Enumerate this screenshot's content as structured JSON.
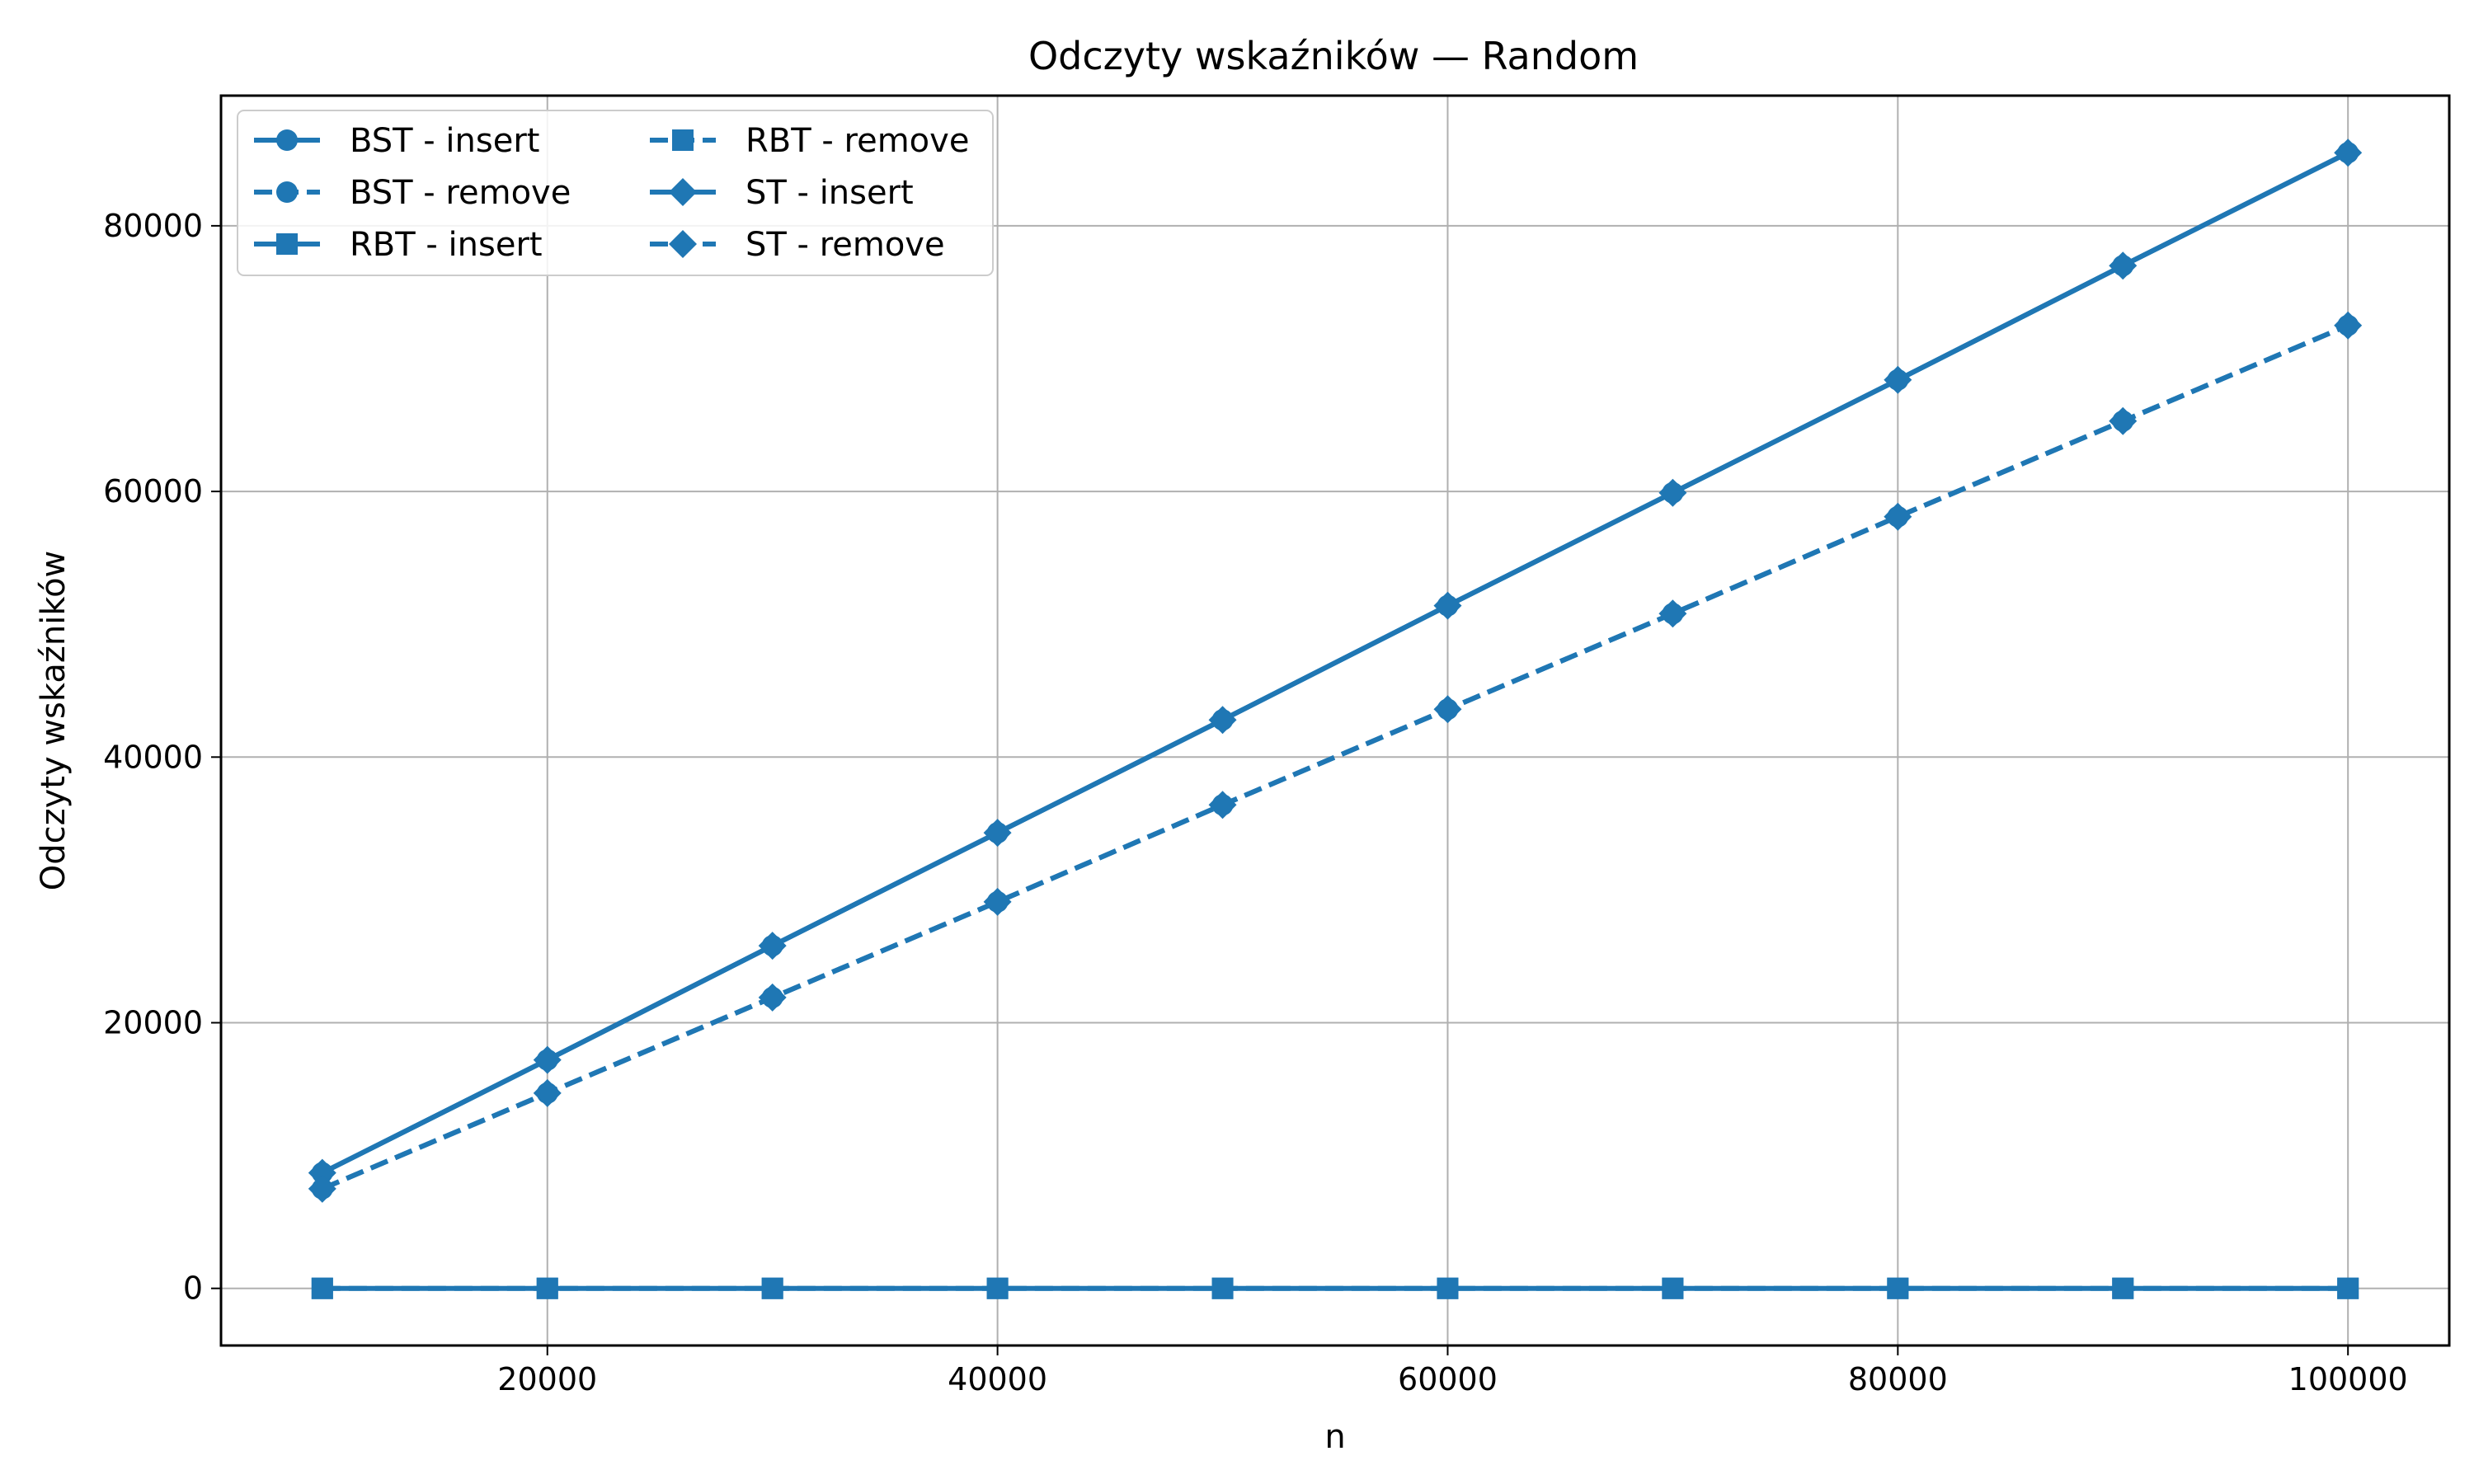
{
  "chart_data": {
    "type": "line",
    "title": "Odczyty wskaźników — Random",
    "xlabel": "n",
    "ylabel": "Odczyty wskaźników",
    "x": [
      10000,
      20000,
      30000,
      40000,
      50000,
      60000,
      70000,
      80000,
      90000,
      100000
    ],
    "xlim": [
      5500,
      104500
    ],
    "ylim": [
      -4300,
      89800
    ],
    "xticks": [
      20000,
      40000,
      60000,
      80000,
      100000
    ],
    "yticks": [
      0,
      20000,
      40000,
      60000,
      80000
    ],
    "xtick_labels": [
      "20000",
      "40000",
      "60000",
      "80000",
      "100000"
    ],
    "ytick_labels": [
      "0",
      "20000",
      "40000",
      "60000",
      "80000"
    ],
    "grid": true,
    "legend_position": "top-left",
    "color": "#1f77b4",
    "series": [
      {
        "name": "BST - insert",
        "marker": "circle",
        "linestyle": "solid",
        "values": [
          8700,
          17200,
          25800,
          34300,
          42800,
          51400,
          59900,
          68400,
          77000,
          85500
        ]
      },
      {
        "name": "BST - remove",
        "marker": "circle",
        "linestyle": "dashed",
        "values": [
          7500,
          14700,
          21900,
          29100,
          36400,
          43600,
          50800,
          58100,
          65300,
          72500
        ]
      },
      {
        "name": "RBT - insert",
        "marker": "square",
        "linestyle": "solid",
        "values": [
          0,
          0,
          0,
          0,
          0,
          0,
          0,
          0,
          0,
          0
        ]
      },
      {
        "name": "RBT - remove",
        "marker": "square",
        "linestyle": "dashed",
        "values": [
          0,
          0,
          0,
          0,
          0,
          0,
          0,
          0,
          0,
          0
        ]
      },
      {
        "name": "ST - insert",
        "marker": "diamond",
        "linestyle": "solid",
        "values": [
          8700,
          17200,
          25800,
          34300,
          42800,
          51400,
          59900,
          68400,
          77000,
          85500
        ]
      },
      {
        "name": "ST - remove",
        "marker": "diamond",
        "linestyle": "dashed",
        "values": [
          7500,
          14700,
          21900,
          29100,
          36400,
          43600,
          50800,
          58100,
          65300,
          72500
        ]
      }
    ]
  }
}
